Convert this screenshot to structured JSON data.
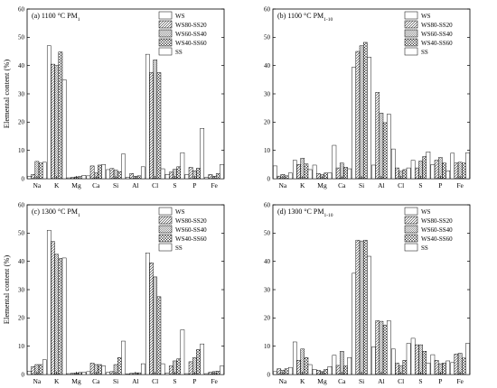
{
  "figure": {
    "ylabel": "Elemental content (%)"
  },
  "series_styles": [
    {
      "name": "WS",
      "pattern": "none"
    },
    {
      "name": "WS80-SS20",
      "pattern": "diag"
    },
    {
      "name": "WS60-SS40",
      "pattern": "diag-dense"
    },
    {
      "name": "WS40-SS60",
      "pattern": "cross"
    },
    {
      "name": "SS",
      "pattern": "none"
    }
  ],
  "chart_data": [
    {
      "type": "bar",
      "title": "(a) 1100 °C PM",
      "title_sub": "1",
      "categories": [
        "Na",
        "K",
        "Mg",
        "Ca",
        "Si",
        "Al",
        "Cl",
        "S",
        "P",
        "Fe"
      ],
      "ylim": [
        0,
        60
      ],
      "yticks": [
        0,
        10,
        20,
        30,
        40,
        50,
        60
      ],
      "ylabel": "Elemental content (%)",
      "legend": "top-right",
      "series": [
        {
          "name": "WS",
          "values": [
            0.8,
            47.0,
            0.3,
            1.0,
            3.2,
            0.5,
            44.0,
            1.5,
            1.5,
            0.5
          ]
        },
        {
          "name": "WS80-SS20",
          "values": [
            1.5,
            40.5,
            0.4,
            4.5,
            3.6,
            1.8,
            37.5,
            2.3,
            4.0,
            1.5
          ]
        },
        {
          "name": "WS60-SS40",
          "values": [
            6.1,
            40.0,
            0.6,
            2.0,
            3.0,
            0.8,
            42.0,
            3.3,
            2.8,
            0.8
          ]
        },
        {
          "name": "WS40-SS60",
          "values": [
            5.5,
            44.8,
            0.8,
            4.8,
            2.5,
            1.0,
            37.5,
            4.2,
            3.7,
            1.8
          ]
        },
        {
          "name": "SS",
          "values": [
            5.8,
            35.0,
            1.2,
            5.0,
            8.7,
            4.2,
            3.5,
            9.2,
            17.8,
            5.0
          ]
        }
      ]
    },
    {
      "type": "bar",
      "title": "(b) 1100 °C PM",
      "title_sub": "1-10",
      "categories": [
        "Na",
        "K",
        "Mg",
        "Ca",
        "Si",
        "Al",
        "Cl",
        "S",
        "P",
        "Fe"
      ],
      "ylim": [
        0,
        60
      ],
      "yticks": [
        0,
        10,
        20,
        30,
        40,
        50,
        60
      ],
      "legend": "top-right",
      "series": [
        {
          "name": "WS",
          "values": [
            4.5,
            6.5,
            4.8,
            11.8,
            39.5,
            4.8,
            10.5,
            6.5,
            5.0,
            9.0
          ]
        },
        {
          "name": "WS80-SS20",
          "values": [
            0.9,
            5.0,
            1.8,
            3.8,
            45.0,
            30.5,
            3.8,
            3.8,
            6.5,
            5.5
          ]
        },
        {
          "name": "WS60-SS40",
          "values": [
            1.5,
            7.2,
            1.4,
            5.5,
            47.0,
            23.2,
            2.6,
            6.2,
            7.5,
            5.8
          ]
        },
        {
          "name": "WS40-SS60",
          "values": [
            1.0,
            5.2,
            2.0,
            4.0,
            48.2,
            19.8,
            3.2,
            7.8,
            5.5,
            5.5
          ]
        },
        {
          "name": "SS",
          "values": [
            2.0,
            3.2,
            2.0,
            3.5,
            43.0,
            22.8,
            3.8,
            9.5,
            2.8,
            9.2
          ]
        }
      ]
    },
    {
      "type": "bar",
      "title": "(c) 1300 °C PM",
      "title_sub": "1",
      "categories": [
        "Na",
        "K",
        "Mg",
        "Ca",
        "Si",
        "Al",
        "Cl",
        "S",
        "P",
        "Fe"
      ],
      "ylim": [
        0,
        60
      ],
      "yticks": [
        0,
        10,
        20,
        30,
        40,
        50,
        60
      ],
      "ylabel": "Elemental content (%)",
      "legend": "top-right",
      "series": [
        {
          "name": "WS",
          "values": [
            1.2,
            51.0,
            0.3,
            1.0,
            0.8,
            0.2,
            43.0,
            0.5,
            0.3,
            0.3
          ]
        },
        {
          "name": "WS80-SS20",
          "values": [
            2.8,
            47.0,
            0.4,
            4.0,
            1.0,
            0.4,
            39.5,
            3.0,
            4.5,
            0.8
          ]
        },
        {
          "name": "WS60-SS40",
          "values": [
            3.5,
            42.5,
            0.5,
            3.5,
            3.5,
            0.4,
            34.5,
            4.8,
            6.0,
            1.0
          ]
        },
        {
          "name": "WS40-SS60",
          "values": [
            3.5,
            41.0,
            0.7,
            3.5,
            6.0,
            0.6,
            27.5,
            5.5,
            8.8,
            1.2
          ]
        },
        {
          "name": "SS",
          "values": [
            5.2,
            41.2,
            0.8,
            3.0,
            11.8,
            3.8,
            3.8,
            15.8,
            10.8,
            3.0
          ]
        }
      ]
    },
    {
      "type": "bar",
      "title": "(d) 1300 °C PM",
      "title_sub": "1-10",
      "categories": [
        "Na",
        "K",
        "Mg",
        "Ca",
        "Si",
        "Al",
        "Cl",
        "S",
        "P",
        "Fe"
      ],
      "ylim": [
        0,
        60
      ],
      "yticks": [
        0,
        10,
        20,
        30,
        40,
        50,
        60
      ],
      "legend": "top-right",
      "series": [
        {
          "name": "WS",
          "values": [
            1.0,
            11.5,
            1.8,
            6.8,
            35.8,
            9.8,
            9.0,
            12.8,
            7.0,
            4.2
          ]
        },
        {
          "name": "WS80-SS20",
          "values": [
            2.0,
            5.0,
            1.5,
            3.2,
            47.5,
            19.0,
            4.0,
            10.5,
            5.0,
            7.2
          ]
        },
        {
          "name": "WS60-SS40",
          "values": [
            1.5,
            9.0,
            1.0,
            8.2,
            47.2,
            18.8,
            3.0,
            10.5,
            3.8,
            7.5
          ]
        },
        {
          "name": "WS40-SS60",
          "values": [
            2.0,
            6.0,
            1.8,
            3.0,
            47.5,
            17.5,
            5.0,
            8.2,
            4.0,
            5.8
          ]
        },
        {
          "name": "SS",
          "values": [
            2.5,
            3.5,
            2.8,
            6.0,
            41.8,
            19.0,
            11.0,
            4.0,
            4.8,
            11.0
          ]
        }
      ]
    }
  ]
}
